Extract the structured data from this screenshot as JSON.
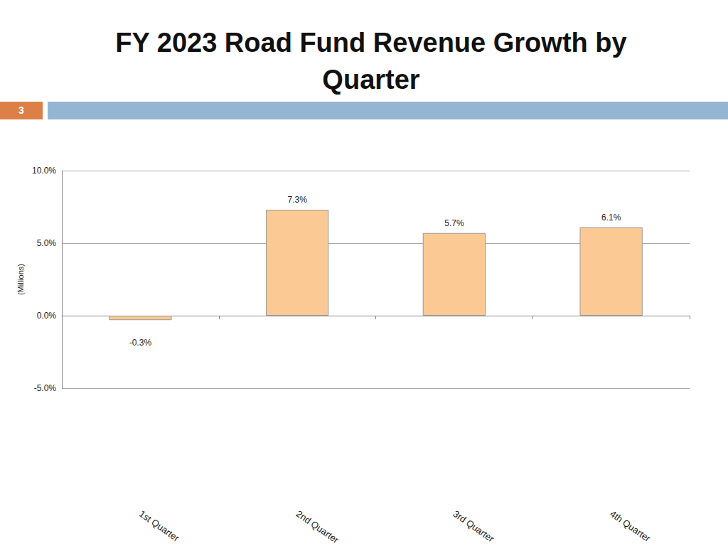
{
  "slide_number": "3",
  "chart_data": {
    "type": "bar",
    "title": "FY 2023 Road Fund Revenue Growth by Quarter",
    "y_label": "(Millions)",
    "categories": [
      "1st Quarter",
      "2nd Quarter",
      "3rd Quarter",
      "4th Quarter"
    ],
    "values": [
      -0.3,
      7.3,
      5.7,
      6.1
    ],
    "value_labels": [
      "-0.3%",
      "7.3%",
      "5.7%",
      "6.1%"
    ],
    "color": "#fbc994",
    "ylim": [
      -5,
      10
    ],
    "yticks": [
      {
        "value": -5,
        "label": "-5.0%"
      },
      {
        "value": 0,
        "label": "0.0%"
      },
      {
        "value": 5,
        "label": "5.0%"
      },
      {
        "value": 10,
        "label": "10.0%"
      }
    ],
    "grid": true,
    "data_labels": true
  }
}
